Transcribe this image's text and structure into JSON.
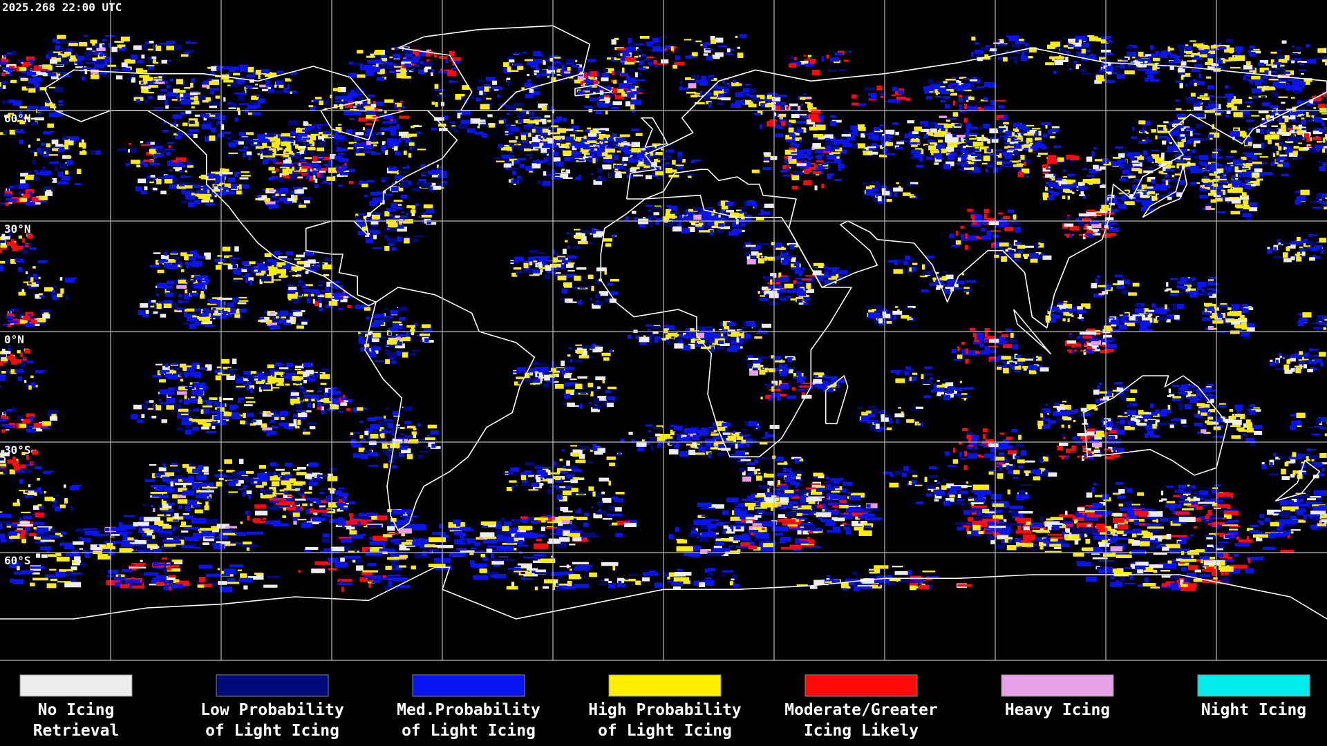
{
  "timestamp": "2025.268 22:00 UTC",
  "latitude_labels": [
    "60°N",
    "30°N",
    "0°N",
    "30°S",
    "60°S"
  ],
  "legend": [
    {
      "lines": [
        "No Icing",
        "Retrieval"
      ],
      "color": "#ededed"
    },
    {
      "lines": [
        "Low Probability",
        "of Light Icing"
      ],
      "color": "#000a78"
    },
    {
      "lines": [
        "Med.Probability",
        "of Light Icing"
      ],
      "color": "#0a14f0"
    },
    {
      "lines": [
        "High Probability",
        "of Light Icing"
      ],
      "color": "#ffee00"
    },
    {
      "lines": [
        "Moderate/Greater",
        "Icing Likely"
      ],
      "color": "#ff0a0a"
    },
    {
      "lines": [
        "Heavy Icing"
      ],
      "color": "#e6a0e6"
    },
    {
      "lines": [
        "Night Icing"
      ],
      "color": "#00ecec"
    }
  ]
}
